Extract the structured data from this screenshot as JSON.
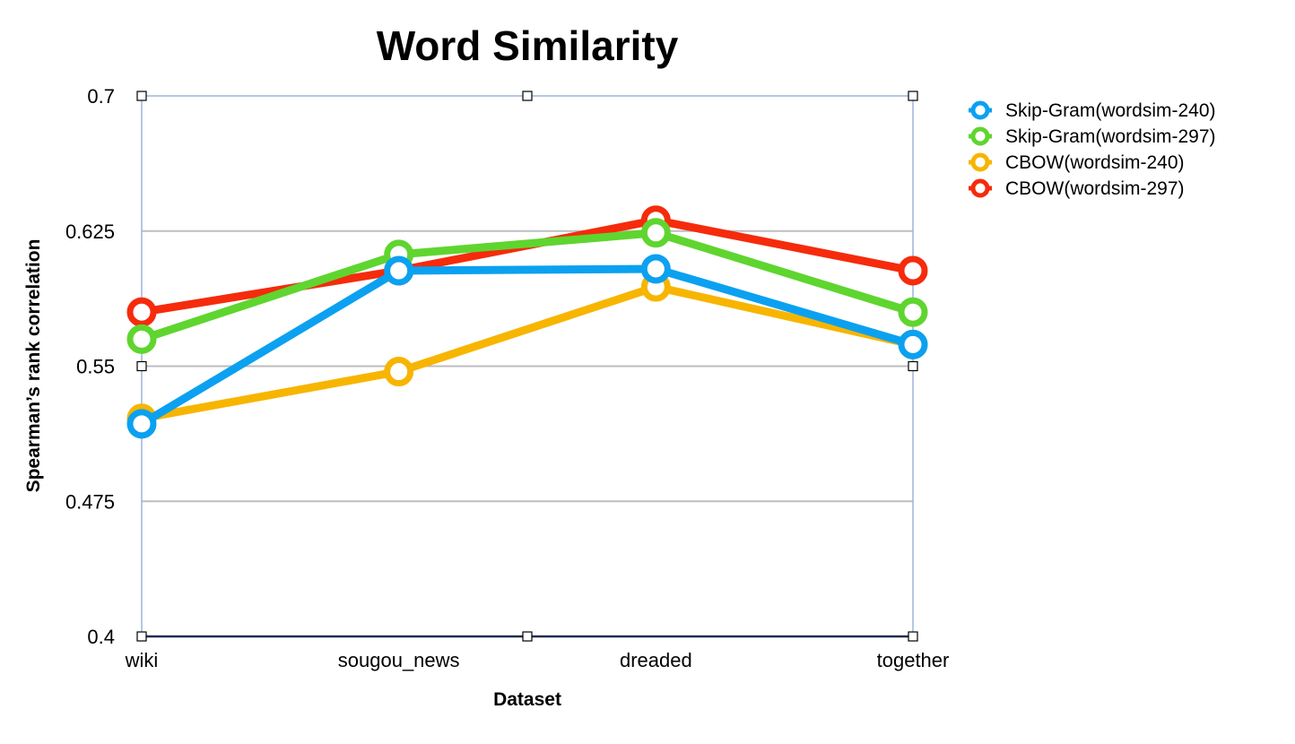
{
  "chart_data": {
    "type": "line",
    "title": "Word Similarity",
    "xlabel": "Dataset",
    "ylabel": "Spearman’s rank correlation",
    "categories": [
      "wiki",
      "sougou_news",
      "dreaded",
      "together"
    ],
    "ylim": [
      0.4,
      0.7
    ],
    "yticks": [
      0.4,
      0.475,
      0.55,
      0.625,
      0.7
    ],
    "ytick_labels": [
      "0.4",
      "0.475",
      "0.55",
      "0.625",
      "0.7"
    ],
    "grid": true,
    "legend_position": "top-right",
    "series": [
      {
        "name": "CBOW(wordsim-240)",
        "color": "#f7b500",
        "values": [
          0.521,
          0.547,
          0.594,
          0.562
        ]
      },
      {
        "name": "CBOW(wordsim-297)",
        "color": "#f52b0c",
        "values": [
          0.58,
          0.603,
          0.631,
          0.603
        ]
      },
      {
        "name": "Skip-Gram(wordsim-297)",
        "color": "#5fd52f",
        "values": [
          0.565,
          0.612,
          0.624,
          0.58
        ]
      },
      {
        "name": "Skip-Gram(wordsim-240)",
        "color": "#0ba1f0",
        "values": [
          0.518,
          0.603,
          0.604,
          0.562
        ]
      }
    ],
    "legend_order": [
      "Skip-Gram(wordsim-240)",
      "Skip-Gram(wordsim-297)",
      "CBOW(wordsim-240)",
      "CBOW(wordsim-297)"
    ]
  }
}
